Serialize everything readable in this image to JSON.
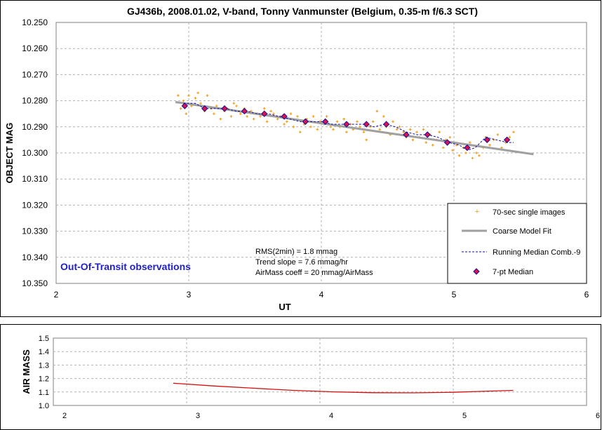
{
  "chart_data": [
    {
      "type": "scatter",
      "title": "GJ436b, 2008.01.02, V-band, Tonny Vanmunster (Belgium, 0.35-m f/6.3 SCT)",
      "xlabel": "UT",
      "ylabel": "OBJECT MAG",
      "xlim": [
        2,
        6
      ],
      "ylim": [
        10.25,
        10.35
      ],
      "y_inverted": true,
      "x_ticks": [
        "2",
        "3",
        "4",
        "5",
        "6"
      ],
      "y_ticks": [
        "10.250",
        "10.260",
        "10.270",
        "10.280",
        "10.290",
        "10.300",
        "10.310",
        "10.320",
        "10.330",
        "10.340",
        "10.350"
      ],
      "grid": true,
      "legend_position": "bottom-right",
      "annotation_blue": "Out-Of-Transit observations",
      "stats_lines": [
        "RMS(2min) = 1.8 mmag",
        "Trend slope = 7.6 mmag/hr",
        "AirMass coeff = 20 mmag/AirMass"
      ],
      "series": [
        {
          "name": "70-sec single images",
          "kind": "scatter",
          "color": "#f0a020",
          "x": [
            2.92,
            2.94,
            2.96,
            2.98,
            3.0,
            3.02,
            3.05,
            3.07,
            3.09,
            3.12,
            3.14,
            3.17,
            3.19,
            3.21,
            3.24,
            3.27,
            3.29,
            3.32,
            3.34,
            3.36,
            3.39,
            3.42,
            3.44,
            3.47,
            3.49,
            3.52,
            3.54,
            3.57,
            3.59,
            3.62,
            3.64,
            3.67,
            3.69,
            3.72,
            3.74,
            3.77,
            3.79,
            3.82,
            3.84,
            3.87,
            3.89,
            3.92,
            3.94,
            3.97,
            3.99,
            4.02,
            4.04,
            4.07,
            4.09,
            4.12,
            4.14,
            4.17,
            4.19,
            4.22,
            4.24,
            4.27,
            4.29,
            4.32,
            4.34,
            4.37,
            4.39,
            4.42,
            4.44,
            4.47,
            4.49,
            4.52,
            4.54,
            4.57,
            4.59,
            4.62,
            4.64,
            4.67,
            4.69,
            4.72,
            4.74,
            4.77,
            4.79,
            4.82,
            4.84,
            4.87,
            4.89,
            4.92,
            4.94,
            4.97,
            4.99,
            5.02,
            5.04,
            5.07,
            5.09,
            5.12,
            5.14,
            5.17,
            5.19,
            5.22,
            5.24,
            5.27,
            5.3,
            5.33,
            5.36,
            5.39,
            5.42,
            5.45
          ],
          "y": [
            10.278,
            10.283,
            10.28,
            10.285,
            10.278,
            10.282,
            10.279,
            10.277,
            10.281,
            10.284,
            10.278,
            10.283,
            10.285,
            10.282,
            10.287,
            10.284,
            10.283,
            10.286,
            10.281,
            10.282,
            10.285,
            10.283,
            10.286,
            10.284,
            10.287,
            10.285,
            10.286,
            10.283,
            10.288,
            10.284,
            10.285,
            10.287,
            10.286,
            10.289,
            10.288,
            10.285,
            10.29,
            10.286,
            10.292,
            10.289,
            10.287,
            10.29,
            10.286,
            10.291,
            10.288,
            10.289,
            10.286,
            10.29,
            10.291,
            10.288,
            10.29,
            10.287,
            10.292,
            10.289,
            10.291,
            10.288,
            10.29,
            10.292,
            10.295,
            10.29,
            10.288,
            10.284,
            10.291,
            10.286,
            10.29,
            10.293,
            10.288,
            10.291,
            10.29,
            10.292,
            10.294,
            10.291,
            10.295,
            10.292,
            10.294,
            10.291,
            10.296,
            10.293,
            10.297,
            10.295,
            10.292,
            10.298,
            10.295,
            10.294,
            10.299,
            10.297,
            10.301,
            10.298,
            10.3,
            10.296,
            10.302,
            10.3,
            10.301,
            10.298,
            10.294,
            10.297,
            10.295,
            10.293,
            10.298,
            10.296,
            10.294,
            10.292
          ]
        },
        {
          "name": "Coarse Model Fit",
          "kind": "line",
          "color": "#a0a0a0",
          "x": [
            2.9,
            5.6
          ],
          "y": [
            10.2805,
            10.3005
          ]
        },
        {
          "name": "Running Median Comb.-9",
          "kind": "dashed-line",
          "color": "#1010a0",
          "x": [
            2.96,
            3.05,
            3.12,
            3.2,
            3.28,
            3.36,
            3.44,
            3.52,
            3.6,
            3.68,
            3.76,
            3.84,
            3.92,
            4.0,
            4.08,
            4.16,
            4.24,
            4.32,
            4.4,
            4.48,
            4.56,
            4.64,
            4.72,
            4.8,
            4.88,
            4.96,
            5.04,
            5.1,
            5.16,
            5.24,
            5.32,
            5.4,
            5.45
          ],
          "y": [
            10.281,
            10.281,
            10.283,
            10.283,
            10.283,
            10.284,
            10.284,
            10.285,
            10.285,
            10.286,
            10.287,
            10.288,
            10.288,
            10.288,
            10.289,
            10.289,
            10.289,
            10.289,
            10.29,
            10.289,
            10.29,
            10.292,
            10.293,
            10.293,
            10.294,
            10.296,
            10.297,
            10.299,
            10.298,
            10.294,
            10.295,
            10.296,
            10.296
          ]
        },
        {
          "name": "7-pt Median",
          "kind": "marker",
          "color": "#e0104a",
          "x": [
            2.97,
            3.12,
            3.27,
            3.42,
            3.57,
            3.72,
            3.88,
            4.03,
            4.19,
            4.34,
            4.49,
            4.64,
            4.8,
            4.95,
            5.1,
            5.25,
            5.4
          ],
          "y": [
            10.282,
            10.283,
            10.283,
            10.284,
            10.285,
            10.286,
            10.288,
            10.288,
            10.289,
            10.289,
            10.289,
            10.293,
            10.293,
            10.296,
            10.298,
            10.295,
            10.295
          ]
        }
      ]
    },
    {
      "type": "line",
      "xlabel": "",
      "ylabel": "AIR MASS",
      "xlim": [
        2,
        6
      ],
      "ylim": [
        1.0,
        1.5
      ],
      "x_ticks": [
        "2",
        "3",
        "4",
        "5",
        "6"
      ],
      "y_ticks": [
        "1.0",
        "1.1",
        "1.2",
        "1.3",
        "1.4",
        "1.5"
      ],
      "grid": true,
      "series": [
        {
          "kind": "line",
          "color": "#d01010",
          "x": [
            2.9,
            3.2,
            3.5,
            3.8,
            4.1,
            4.4,
            4.7,
            5.0,
            5.2,
            5.45
          ],
          "y": [
            1.165,
            1.145,
            1.128,
            1.112,
            1.101,
            1.095,
            1.094,
            1.098,
            1.104,
            1.112
          ]
        }
      ]
    }
  ]
}
